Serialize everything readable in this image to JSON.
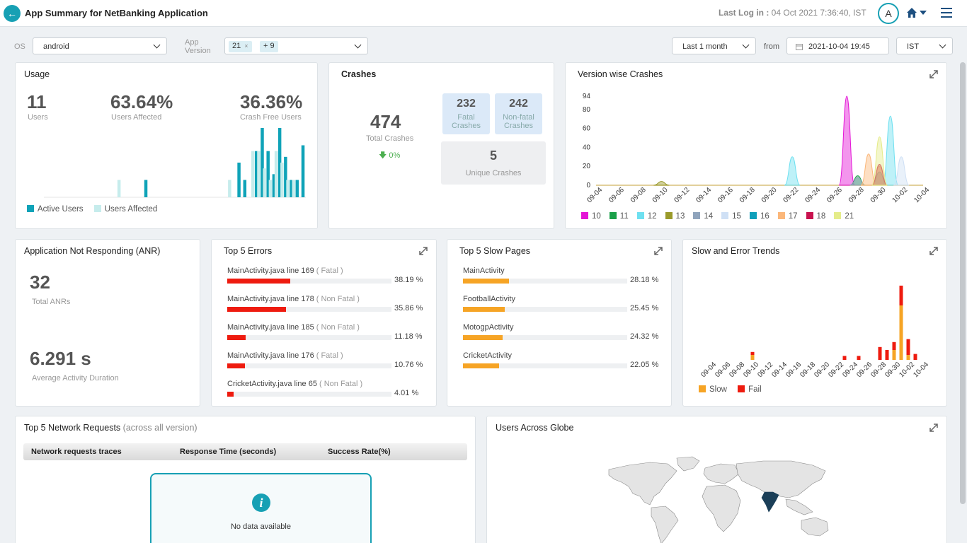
{
  "header": {
    "title": "App Summary for NetBanking Application",
    "last_log_label": "Last Log in :",
    "last_log_value": "04 Oct 2021 7:36:40, IST",
    "avatar": "A"
  },
  "filters": {
    "os_label": "OS",
    "os_value": "android",
    "app_version_label1": "App",
    "app_version_label2": "Version",
    "version_chip": "21",
    "version_chip_remove": "×",
    "version_more": "+ 9",
    "range_value": "Last 1 month",
    "from_label": "from",
    "from_value": "2021-10-04 19:45",
    "tz_value": "IST"
  },
  "usage": {
    "title": "Usage",
    "users": "11",
    "users_label": "Users",
    "affected": "63.64%",
    "affected_label": "Users Affected",
    "crash_free": "36.36%",
    "crash_free_label": "Crash Free Users",
    "legend": [
      "Active Users",
      "Users Affected"
    ],
    "colors": {
      "active": "#0fa3b8",
      "affected": "#c6ecec"
    },
    "chart_data": {
      "type": "bar",
      "series": [
        {
          "name": "Active Users",
          "values": [
            0,
            0,
            0,
            0,
            0,
            0,
            0,
            0,
            0,
            0,
            0,
            0,
            0,
            0,
            0,
            0,
            0,
            3,
            0,
            0,
            0,
            0,
            0,
            0,
            0,
            0,
            0,
            0,
            0,
            0,
            0,
            0,
            0,
            6,
            3,
            0,
            8,
            12,
            8,
            4,
            12,
            7,
            3,
            3,
            9
          ]
        },
        {
          "name": "Users Affected",
          "values": [
            0,
            0,
            0,
            0,
            0,
            0,
            0,
            0,
            0,
            0,
            0,
            0,
            0,
            3,
            0,
            0,
            0,
            0,
            0,
            0,
            0,
            0,
            0,
            0,
            0,
            0,
            0,
            0,
            0,
            0,
            0,
            0,
            3,
            0,
            0,
            0,
            8,
            8,
            5,
            3,
            8,
            6,
            3,
            3,
            0
          ]
        }
      ]
    }
  },
  "crashes": {
    "title": "Crashes",
    "total": "474",
    "total_label": "Total Crashes",
    "trend": "0%",
    "fatal": "232",
    "fatal_l1": "Fatal",
    "fatal_l2": "Crashes",
    "nonfatal": "242",
    "nonfatal_l1": "Non-fatal",
    "nonfatal_l2": "Crashes",
    "unique": "5",
    "unique_label": "Unique Crashes"
  },
  "version_crashes": {
    "title": "Version wise Crashes",
    "chart_data": {
      "type": "area",
      "x": [
        "09-04",
        "09-06",
        "09-08",
        "09-10",
        "09-12",
        "09-14",
        "09-16",
        "09-18",
        "09-20",
        "09-22",
        "09-24",
        "09-26",
        "09-28",
        "09-30",
        "10-02",
        "10-04"
      ],
      "ylim": [
        0,
        94
      ],
      "yticks": [
        0,
        20,
        40,
        60,
        80,
        94
      ],
      "series": [
        {
          "name": "10",
          "color": "#e415d6",
          "peaks": [
            [
              "09-27",
              94
            ]
          ]
        },
        {
          "name": "11",
          "color": "#1aa049",
          "peaks": [
            [
              "09-28",
              10
            ]
          ]
        },
        {
          "name": "12",
          "color": "#6ee0f0",
          "peaks": [
            [
              "09-22",
              30
            ],
            [
              "10-01",
              73
            ]
          ]
        },
        {
          "name": "13",
          "color": "#9a9a2a",
          "peaks": [
            [
              "09-10",
              4
            ]
          ]
        },
        {
          "name": "14",
          "color": "#8fa4bc",
          "peaks": [
            [
              "09-28",
              8
            ]
          ]
        },
        {
          "name": "15",
          "color": "#cfe0f5",
          "peaks": [
            [
              "10-02",
              30
            ]
          ]
        },
        {
          "name": "16",
          "color": "#0f9fba",
          "peaks": [
            [
              "09-30",
              14
            ]
          ]
        },
        {
          "name": "17",
          "color": "#fbb77a",
          "peaks": [
            [
              "09-29",
              33
            ],
            [
              "09-30",
              20
            ]
          ]
        },
        {
          "name": "18",
          "color": "#c8124e",
          "peaks": [
            [
              "09-30",
              22
            ]
          ]
        },
        {
          "name": "21",
          "color": "#e5ec8a",
          "peaks": [
            [
              "09-30",
              51
            ]
          ]
        }
      ]
    }
  },
  "anr": {
    "title": "Application Not Responding (ANR)",
    "total": "32",
    "total_label": "Total ANRs",
    "avg": "6.291 s",
    "avg_label": "Average Activity Duration"
  },
  "errors": {
    "title": "Top 5 Errors",
    "bar_color": "#ee1b0f",
    "items": [
      {
        "name": "MainActivity.java line 169",
        "type": "( Fatal )",
        "pct": "38.19 %",
        "value": 38.19
      },
      {
        "name": "MainActivity.java line 178",
        "type": "( Non Fatal )",
        "pct": "35.86 %",
        "value": 35.86
      },
      {
        "name": "MainActivity.java line 185",
        "type": "( Non Fatal )",
        "pct": "11.18 %",
        "value": 11.18
      },
      {
        "name": "MainActivity.java line 176",
        "type": "( Fatal )",
        "pct": "10.76 %",
        "value": 10.76
      },
      {
        "name": "CricketActivity.java line 65",
        "type": "( Non Fatal )",
        "pct": "4.01 %",
        "value": 4.01
      }
    ]
  },
  "slow_pages": {
    "title": "Top 5 Slow Pages",
    "bar_color": "#f6a425",
    "items": [
      {
        "name": "MainActivity",
        "pct": "28.18 %",
        "value": 28.18
      },
      {
        "name": "FootballActivity",
        "pct": "25.45 %",
        "value": 25.45
      },
      {
        "name": "MotogpActivity",
        "pct": "24.32 %",
        "value": 24.32
      },
      {
        "name": "CricketActivity",
        "pct": "22.05 %",
        "value": 22.05
      }
    ]
  },
  "trends": {
    "title": "Slow and Error Trends",
    "legend": [
      "Slow",
      "Fail"
    ],
    "colors": {
      "slow": "#f6a425",
      "fail": "#ee1b0f"
    },
    "chart_data": {
      "type": "bar",
      "categories": [
        "09-10",
        "09-23",
        "09-25",
        "09-28",
        "09-29",
        "09-30",
        "10-01",
        "10-02",
        "10-03"
      ],
      "series": [
        {
          "name": "Slow",
          "values": [
            5,
            0,
            0,
            0,
            0,
            10,
            55,
            5,
            0
          ]
        },
        {
          "name": "Fail",
          "values": [
            3,
            4,
            4,
            13,
            10,
            8,
            20,
            16,
            6
          ]
        }
      ]
    },
    "x_ticks": [
      "09-04",
      "09-06",
      "09-08",
      "09-10",
      "09-12",
      "09-14",
      "09-16",
      "09-18",
      "09-20",
      "09-22",
      "09-24",
      "09-26",
      "09-28",
      "09-30",
      "10-02",
      "10-04"
    ]
  },
  "network": {
    "title": "Top 5 Network Requests",
    "subtitle": "(across all version)",
    "columns": [
      "Network requests traces",
      "Response Time (seconds)",
      "Success Rate(%)"
    ],
    "nodata_icon": "i",
    "nodata": "No data available"
  },
  "globe": {
    "title": "Users Across Globe",
    "highlight_color": "#1b3f58"
  }
}
